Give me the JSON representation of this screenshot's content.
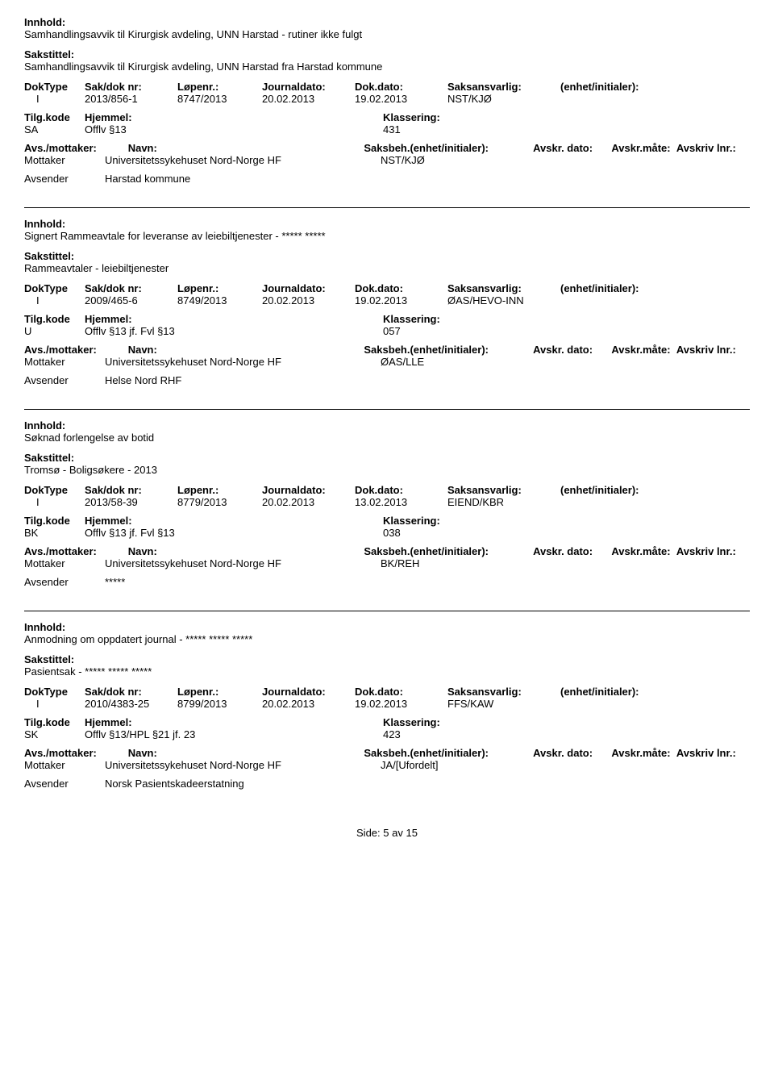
{
  "labels": {
    "innhold": "Innhold:",
    "sakstittel": "Sakstittel:",
    "doktype": "DokType",
    "sakdoknr": "Sak/dok nr:",
    "lopenr": "Løpenr.:",
    "journaldato": "Journaldato:",
    "dokdato": "Dok.dato:",
    "saksansvarlig": "Saksansvarlig:",
    "enhetinitialer": "(enhet/initialer):",
    "tilgkode": "Tilg.kode",
    "hjemmel": "Hjemmel:",
    "klassering": "Klassering:",
    "avsmottaker": "Avs./mottaker:",
    "navn": "Navn:",
    "saksbeh_full": "Saksbeh.(enhet/initialer):",
    "avskrdato": "Avskr. dato:",
    "avskrmate": "Avskr.måte:",
    "avskrivlnr": "Avskriv lnr.:",
    "mottaker": "Mottaker",
    "avsender": "Avsender"
  },
  "records": [
    {
      "innhold": "Samhandlingsavvik til Kirurgisk avdeling, UNN Harstad - rutiner ikke fulgt",
      "sakstittel": "Samhandlingsavvik til Kirurgisk avdeling, UNN Harstad fra Harstad kommune",
      "doktype": "I",
      "sakdoknr": "2013/856-1",
      "lopenr": "8747/2013",
      "journaldato": "20.02.2013",
      "dokdato": "19.02.2013",
      "saksansvarlig": "NST/KJØ",
      "tilgkode": "SA",
      "hjemmel": "Offlv §13",
      "klassering": "431",
      "mottaker_navn": "Universitetssykehuset Nord-Norge HF",
      "mottaker_saksbeh": "NST/KJØ",
      "avsender_navn": "Harstad kommune"
    },
    {
      "innhold": "Signert Rammeavtale for leveranse av leiebiltjenester - ***** *****",
      "sakstittel": "Rammeavtaler - leiebiltjenester",
      "doktype": "I",
      "sakdoknr": "2009/465-6",
      "lopenr": "8749/2013",
      "journaldato": "20.02.2013",
      "dokdato": "19.02.2013",
      "saksansvarlig": "ØAS/HEVO-INN",
      "tilgkode": "U",
      "hjemmel": "Offlv §13 jf. Fvl §13",
      "klassering": "057",
      "mottaker_navn": "Universitetssykehuset Nord-Norge HF",
      "mottaker_saksbeh": "ØAS/LLE",
      "avsender_navn": "Helse Nord RHF"
    },
    {
      "innhold": "Søknad forlengelse av botid",
      "sakstittel": "Tromsø - Boligsøkere - 2013",
      "doktype": "I",
      "sakdoknr": "2013/58-39",
      "lopenr": "8779/2013",
      "journaldato": "20.02.2013",
      "dokdato": "13.02.2013",
      "saksansvarlig": "EIEND/KBR",
      "tilgkode": "BK",
      "hjemmel": "Offlv §13 jf. Fvl §13",
      "klassering": "038",
      "mottaker_navn": "Universitetssykehuset Nord-Norge HF",
      "mottaker_saksbeh": "BK/REH",
      "avsender_navn": "*****"
    },
    {
      "innhold": "Anmodning om oppdatert journal - ***** ***** *****",
      "sakstittel": "Pasientsak - ***** ***** *****",
      "doktype": "I",
      "sakdoknr": "2010/4383-25",
      "lopenr": "8799/2013",
      "journaldato": "20.02.2013",
      "dokdato": "19.02.2013",
      "saksansvarlig": "FFS/KAW",
      "tilgkode": "SK",
      "hjemmel": "Offlv §13/HPL §21 jf. 23",
      "klassering": "423",
      "mottaker_navn": "Universitetssykehuset Nord-Norge HF",
      "mottaker_saksbeh": "JA/[Ufordelt]",
      "avsender_navn": "Norsk Pasientskadeerstatning"
    }
  ],
  "footer": {
    "side_label": "Side:",
    "page_current": "5",
    "av": "av",
    "page_total": "15"
  }
}
